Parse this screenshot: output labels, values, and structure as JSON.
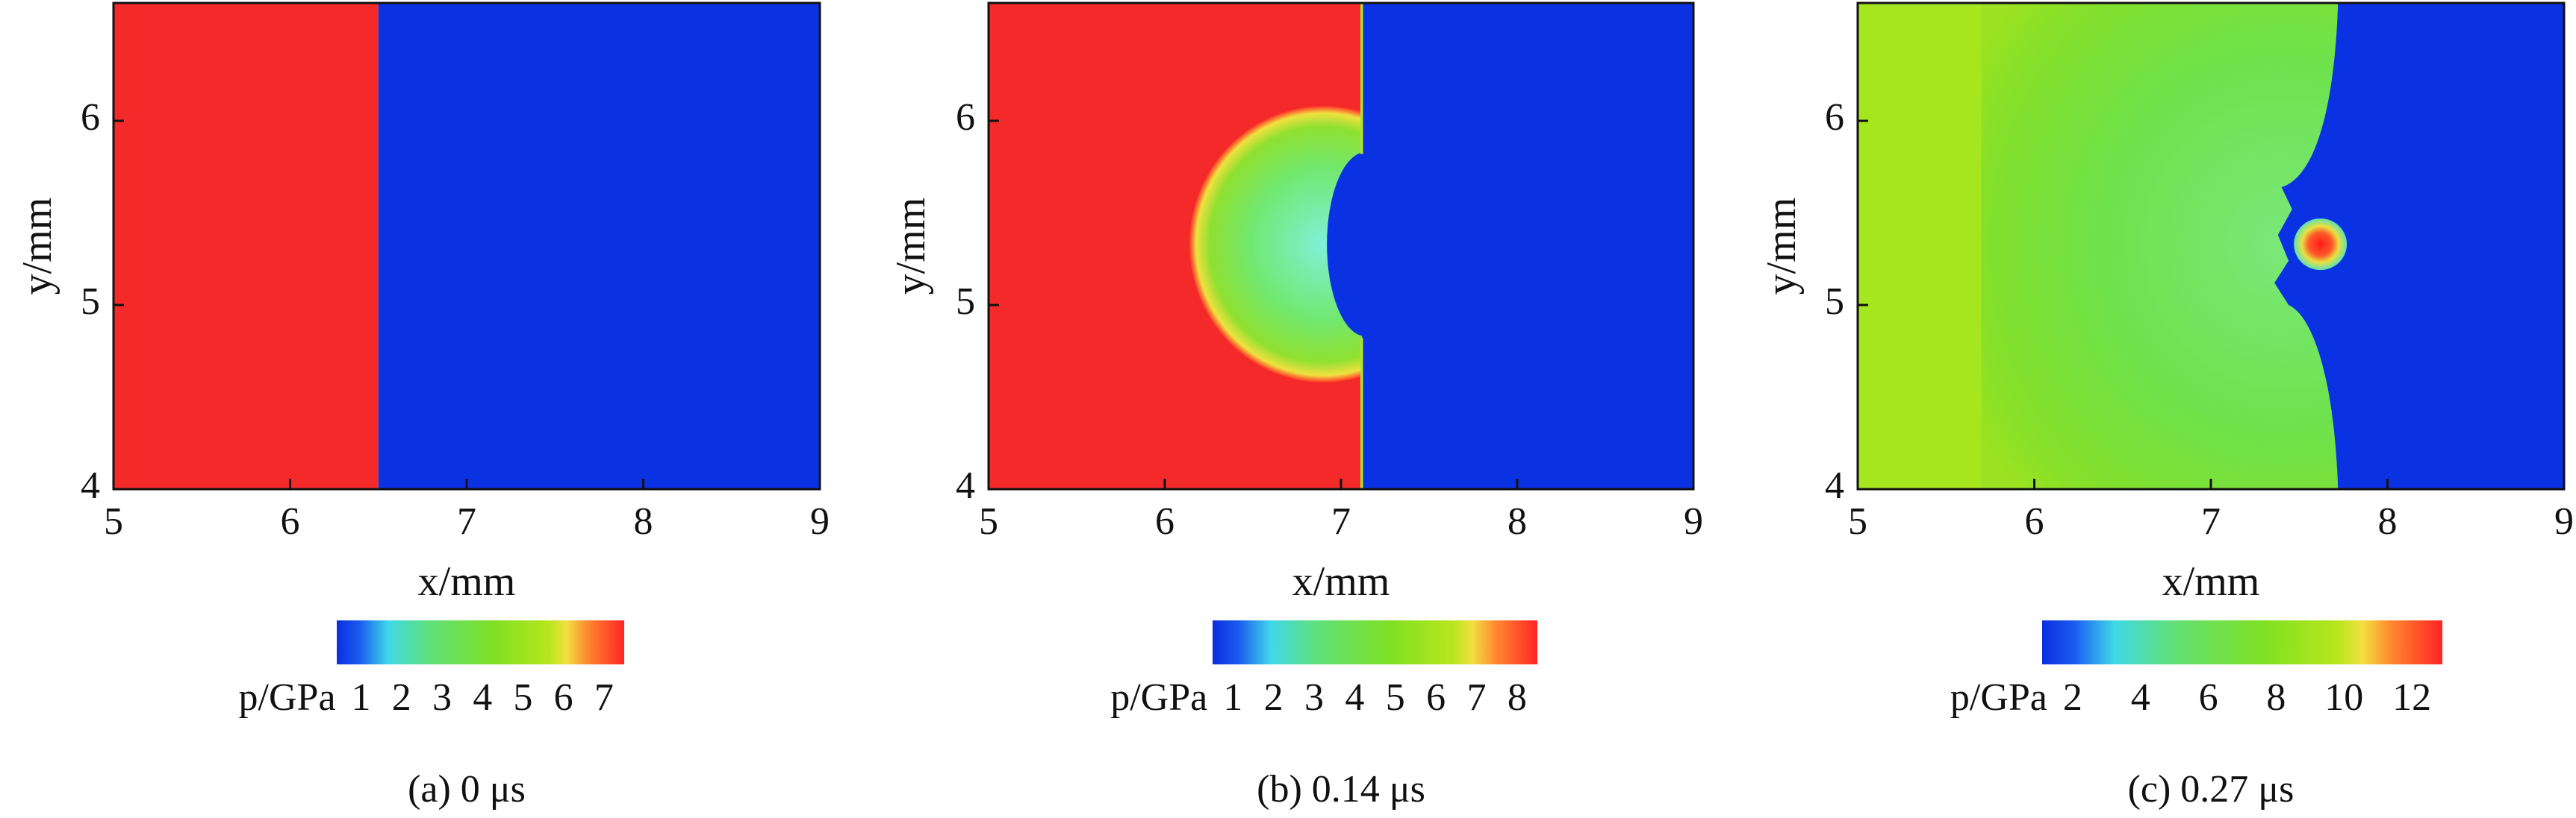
{
  "chart_data": [
    {
      "type": "heatmap",
      "xlabel": "x/mm",
      "ylabel": "y/mm",
      "xlim": [
        5,
        9
      ],
      "xticks": [
        5,
        6,
        7,
        8,
        9
      ],
      "ylim": [
        4,
        6.64
      ],
      "yticks": [
        4,
        5,
        6
      ],
      "colorbar": {
        "label": "p/GPa",
        "lim": [
          0.4,
          7.5
        ],
        "ticks": [
          1,
          2,
          3,
          4,
          5,
          6,
          7
        ]
      },
      "caption": "(a) 0 μs"
    },
    {
      "type": "heatmap",
      "xlabel": "x/mm",
      "ylabel": "y/mm",
      "xlim": [
        5,
        9
      ],
      "xticks": [
        5,
        6,
        7,
        8,
        9
      ],
      "ylim": [
        4,
        6.64
      ],
      "yticks": [
        4,
        5,
        6
      ],
      "colorbar": {
        "label": "p/GPa",
        "lim": [
          0.5,
          8.5
        ],
        "ticks": [
          1,
          2,
          3,
          4,
          5,
          6,
          7,
          8
        ]
      },
      "caption": "(b) 0.14 μs"
    },
    {
      "type": "heatmap",
      "xlabel": "x/mm",
      "ylabel": "y/mm",
      "xlim": [
        5,
        9
      ],
      "xticks": [
        5,
        6,
        7,
        8,
        9
      ],
      "ylim": [
        4,
        6.64
      ],
      "yticks": [
        4,
        5,
        6
      ],
      "colorbar": {
        "label": "p/GPa",
        "lim": [
          1.1,
          12.9
        ],
        "ticks": [
          2,
          4,
          6,
          8,
          10,
          12
        ]
      },
      "caption": "(c) 0.27 μs"
    }
  ]
}
